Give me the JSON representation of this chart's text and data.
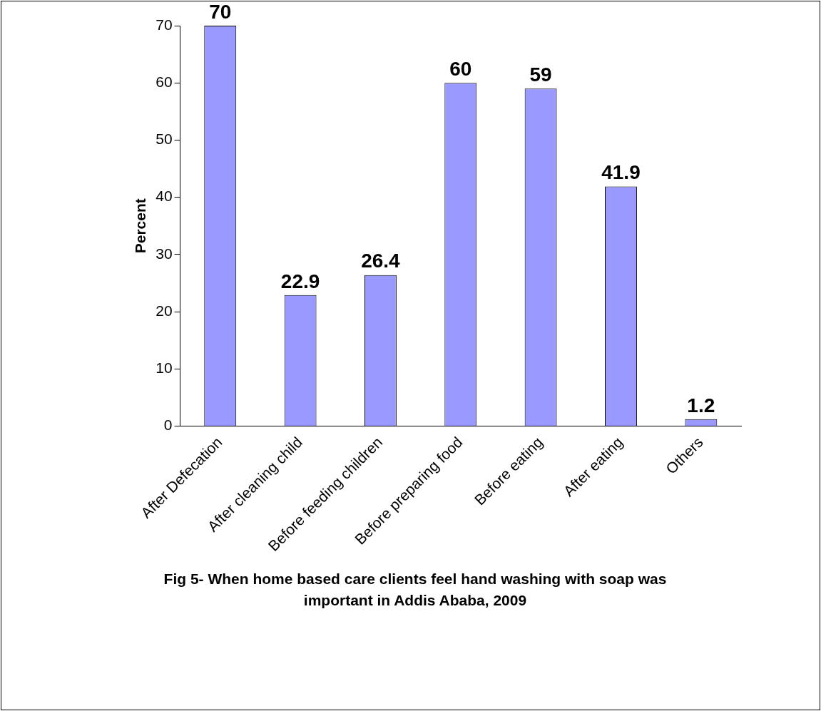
{
  "chart_data": {
    "type": "bar",
    "title": "Fig 5- When home based care clients feel hand washing with soap was important in Addis Ababa, 2009",
    "ylabel": "Percent",
    "categories": [
      "After Defecation",
      "After cleaning child",
      "Before feeding children",
      "Before preparing food",
      "Before eating",
      "After eating",
      "Others"
    ],
    "values": [
      70,
      22.9,
      26.4,
      60,
      59,
      41.9,
      1.2
    ],
    "color": "#9999ff",
    "ylim": [
      0,
      70
    ],
    "yticks": [
      0,
      10,
      20,
      30,
      40,
      50,
      60,
      70
    ],
    "grid": false,
    "legend": false,
    "data_labels": true
  }
}
